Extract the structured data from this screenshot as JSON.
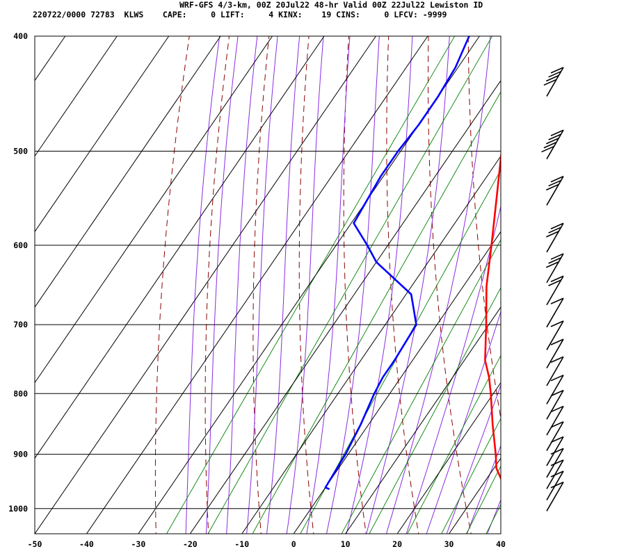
{
  "header": {
    "title": "WRF-GFS 4/3-km, 00Z 20Jul22 48-hr Valid 00Z 22Jul22 Lewiston ID",
    "stats": "220722/0000 72783  KLWS    CAPE:     0 LIFT:     4 KINX:    19 CINS:     0 LFCV: -9999"
  },
  "colors": {
    "temperature": "#ff0000",
    "dewpoint": "#0000ff",
    "isotherm_grid": "#000000",
    "dry_adiabat": "#8b0000",
    "moist_adiabat": "#8a2be2",
    "mixing_ratio": "#008000",
    "wind_barb": "#000000"
  },
  "chart_data": {
    "type": "line",
    "subtype": "skew-t log-p sounding",
    "x_ticks": [
      -50,
      -40,
      -30,
      -20,
      -10,
      0,
      10,
      20,
      30,
      40
    ],
    "y_ticks": [
      400,
      500,
      600,
      700,
      800,
      900,
      1000
    ],
    "xlim": [
      -50,
      40
    ],
    "ylim_hpa": [
      400,
      1050
    ],
    "y_scale": "log (inverted)",
    "grid": true,
    "series": [
      {
        "points": [
          {
            "p": 963,
            "t": 35.5
          },
          {
            "p": 950,
            "t": 33.5
          },
          {
            "p": 925,
            "t": 30.5
          },
          {
            "p": 900,
            "t": 28.5
          },
          {
            "p": 850,
            "t": 24
          },
          {
            "p": 800,
            "t": 19.5
          },
          {
            "p": 775,
            "t": 17
          },
          {
            "p": 750,
            "t": 14
          },
          {
            "p": 700,
            "t": 9.5
          },
          {
            "p": 650,
            "t": 4.5
          },
          {
            "p": 600,
            "t": 0
          },
          {
            "p": 550,
            "t": -5
          },
          {
            "p": 500,
            "t": -10.5
          },
          {
            "p": 475,
            "t": -13.5
          },
          {
            "p": 450,
            "t": -17.5
          },
          {
            "p": 425,
            "t": -19.5
          },
          {
            "p": 400,
            "t": -21
          }
        ]
      },
      {
        "points": [
          {
            "p": 963,
            "t": 1
          },
          {
            "p": 960,
            "t": 0
          },
          {
            "p": 900,
            "t": -0.5
          },
          {
            "p": 850,
            "t": -1.5
          },
          {
            "p": 800,
            "t": -3
          },
          {
            "p": 775,
            "t": -3.5
          },
          {
            "p": 750,
            "t": -3.5
          },
          {
            "p": 700,
            "t": -4
          },
          {
            "p": 660,
            "t": -9
          },
          {
            "p": 620,
            "t": -20
          },
          {
            "p": 600,
            "t": -24
          },
          {
            "p": 575,
            "t": -29.5
          },
          {
            "p": 550,
            "t": -30
          },
          {
            "p": 525,
            "t": -30.5
          },
          {
            "p": 500,
            "t": -30.5
          },
          {
            "p": 475,
            "t": -30
          },
          {
            "p": 450,
            "t": -30
          },
          {
            "p": 425,
            "t": -30.5
          },
          {
            "p": 400,
            "t": -32
          }
        ]
      }
    ],
    "wind_barbs": [
      {
        "p": 950,
        "flags": 0,
        "full": 1,
        "half": 0
      },
      {
        "p": 930,
        "flags": 0,
        "full": 1,
        "half": 0
      },
      {
        "p": 910,
        "flags": 0,
        "full": 1,
        "half": 0
      },
      {
        "p": 890,
        "flags": 0,
        "full": 1,
        "half": 0
      },
      {
        "p": 870,
        "flags": 0,
        "full": 1,
        "half": 0
      },
      {
        "p": 845,
        "flags": 0,
        "full": 1,
        "half": 0
      },
      {
        "p": 820,
        "flags": 0,
        "full": 1,
        "half": 0
      },
      {
        "p": 795,
        "flags": 0,
        "full": 1,
        "half": 0
      },
      {
        "p": 772,
        "flags": 0,
        "full": 1,
        "half": 0
      },
      {
        "p": 745,
        "flags": 0,
        "full": 1,
        "half": 0
      },
      {
        "p": 720,
        "flags": 0,
        "full": 1,
        "half": 0
      },
      {
        "p": 695,
        "flags": 0,
        "full": 1,
        "half": 0
      },
      {
        "p": 665,
        "flags": 0,
        "full": 1,
        "half": 0
      },
      {
        "p": 637,
        "flags": 0,
        "full": 2,
        "half": 0
      },
      {
        "p": 610,
        "flags": 0,
        "full": 3,
        "half": 0
      },
      {
        "p": 575,
        "flags": 0,
        "full": 3,
        "half": 0
      },
      {
        "p": 525,
        "flags": 0,
        "full": 3,
        "half": 0
      },
      {
        "p": 480,
        "flags": 0,
        "full": 5,
        "half": 0
      },
      {
        "p": 425,
        "flags": 0,
        "full": 4,
        "half": 0
      }
    ]
  }
}
